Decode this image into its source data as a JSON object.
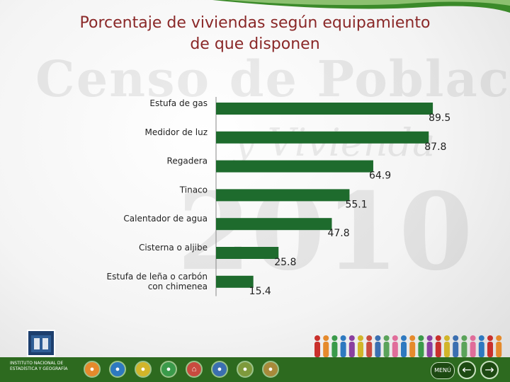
{
  "slide": {
    "title_line1": "Porcentaje de viviendas según equipamiento",
    "title_line2": "de que disponen",
    "watermark": {
      "line1": "Censo de Población",
      "line2": "y Vivienda",
      "line3": "2010"
    }
  },
  "chart_data": {
    "type": "bar",
    "orientation": "horizontal",
    "title": "Porcentaje de viviendas según equipamiento de que disponen",
    "categories": [
      "Estufa de gas",
      "Medidor de luz",
      "Regadera",
      "Tinaco",
      "Calentador de agua",
      "Cisterna o aljibe",
      "Estufa de leña o carbón con chimenea"
    ],
    "values": [
      89.5,
      87.8,
      64.9,
      55.1,
      47.8,
      25.8,
      15.4
    ],
    "value_labels": [
      "89.5",
      "87.8",
      "64.9",
      "55.1",
      "47.8",
      "25.8",
      "15.4"
    ],
    "xlim": [
      0,
      100
    ],
    "bar_color": "#1e6b2d",
    "grid": false,
    "legend": "none"
  },
  "footer": {
    "logo_name": "INEGI",
    "logo_text": "INSTITUTO NACIONAL DE ESTADÍSTICA Y GEOGRAFÍA",
    "menu_label": "MENÚ",
    "prev_icon": "arrow-left-icon",
    "next_icon": "arrow-right-icon",
    "accent_color": "#2d6a1f"
  }
}
